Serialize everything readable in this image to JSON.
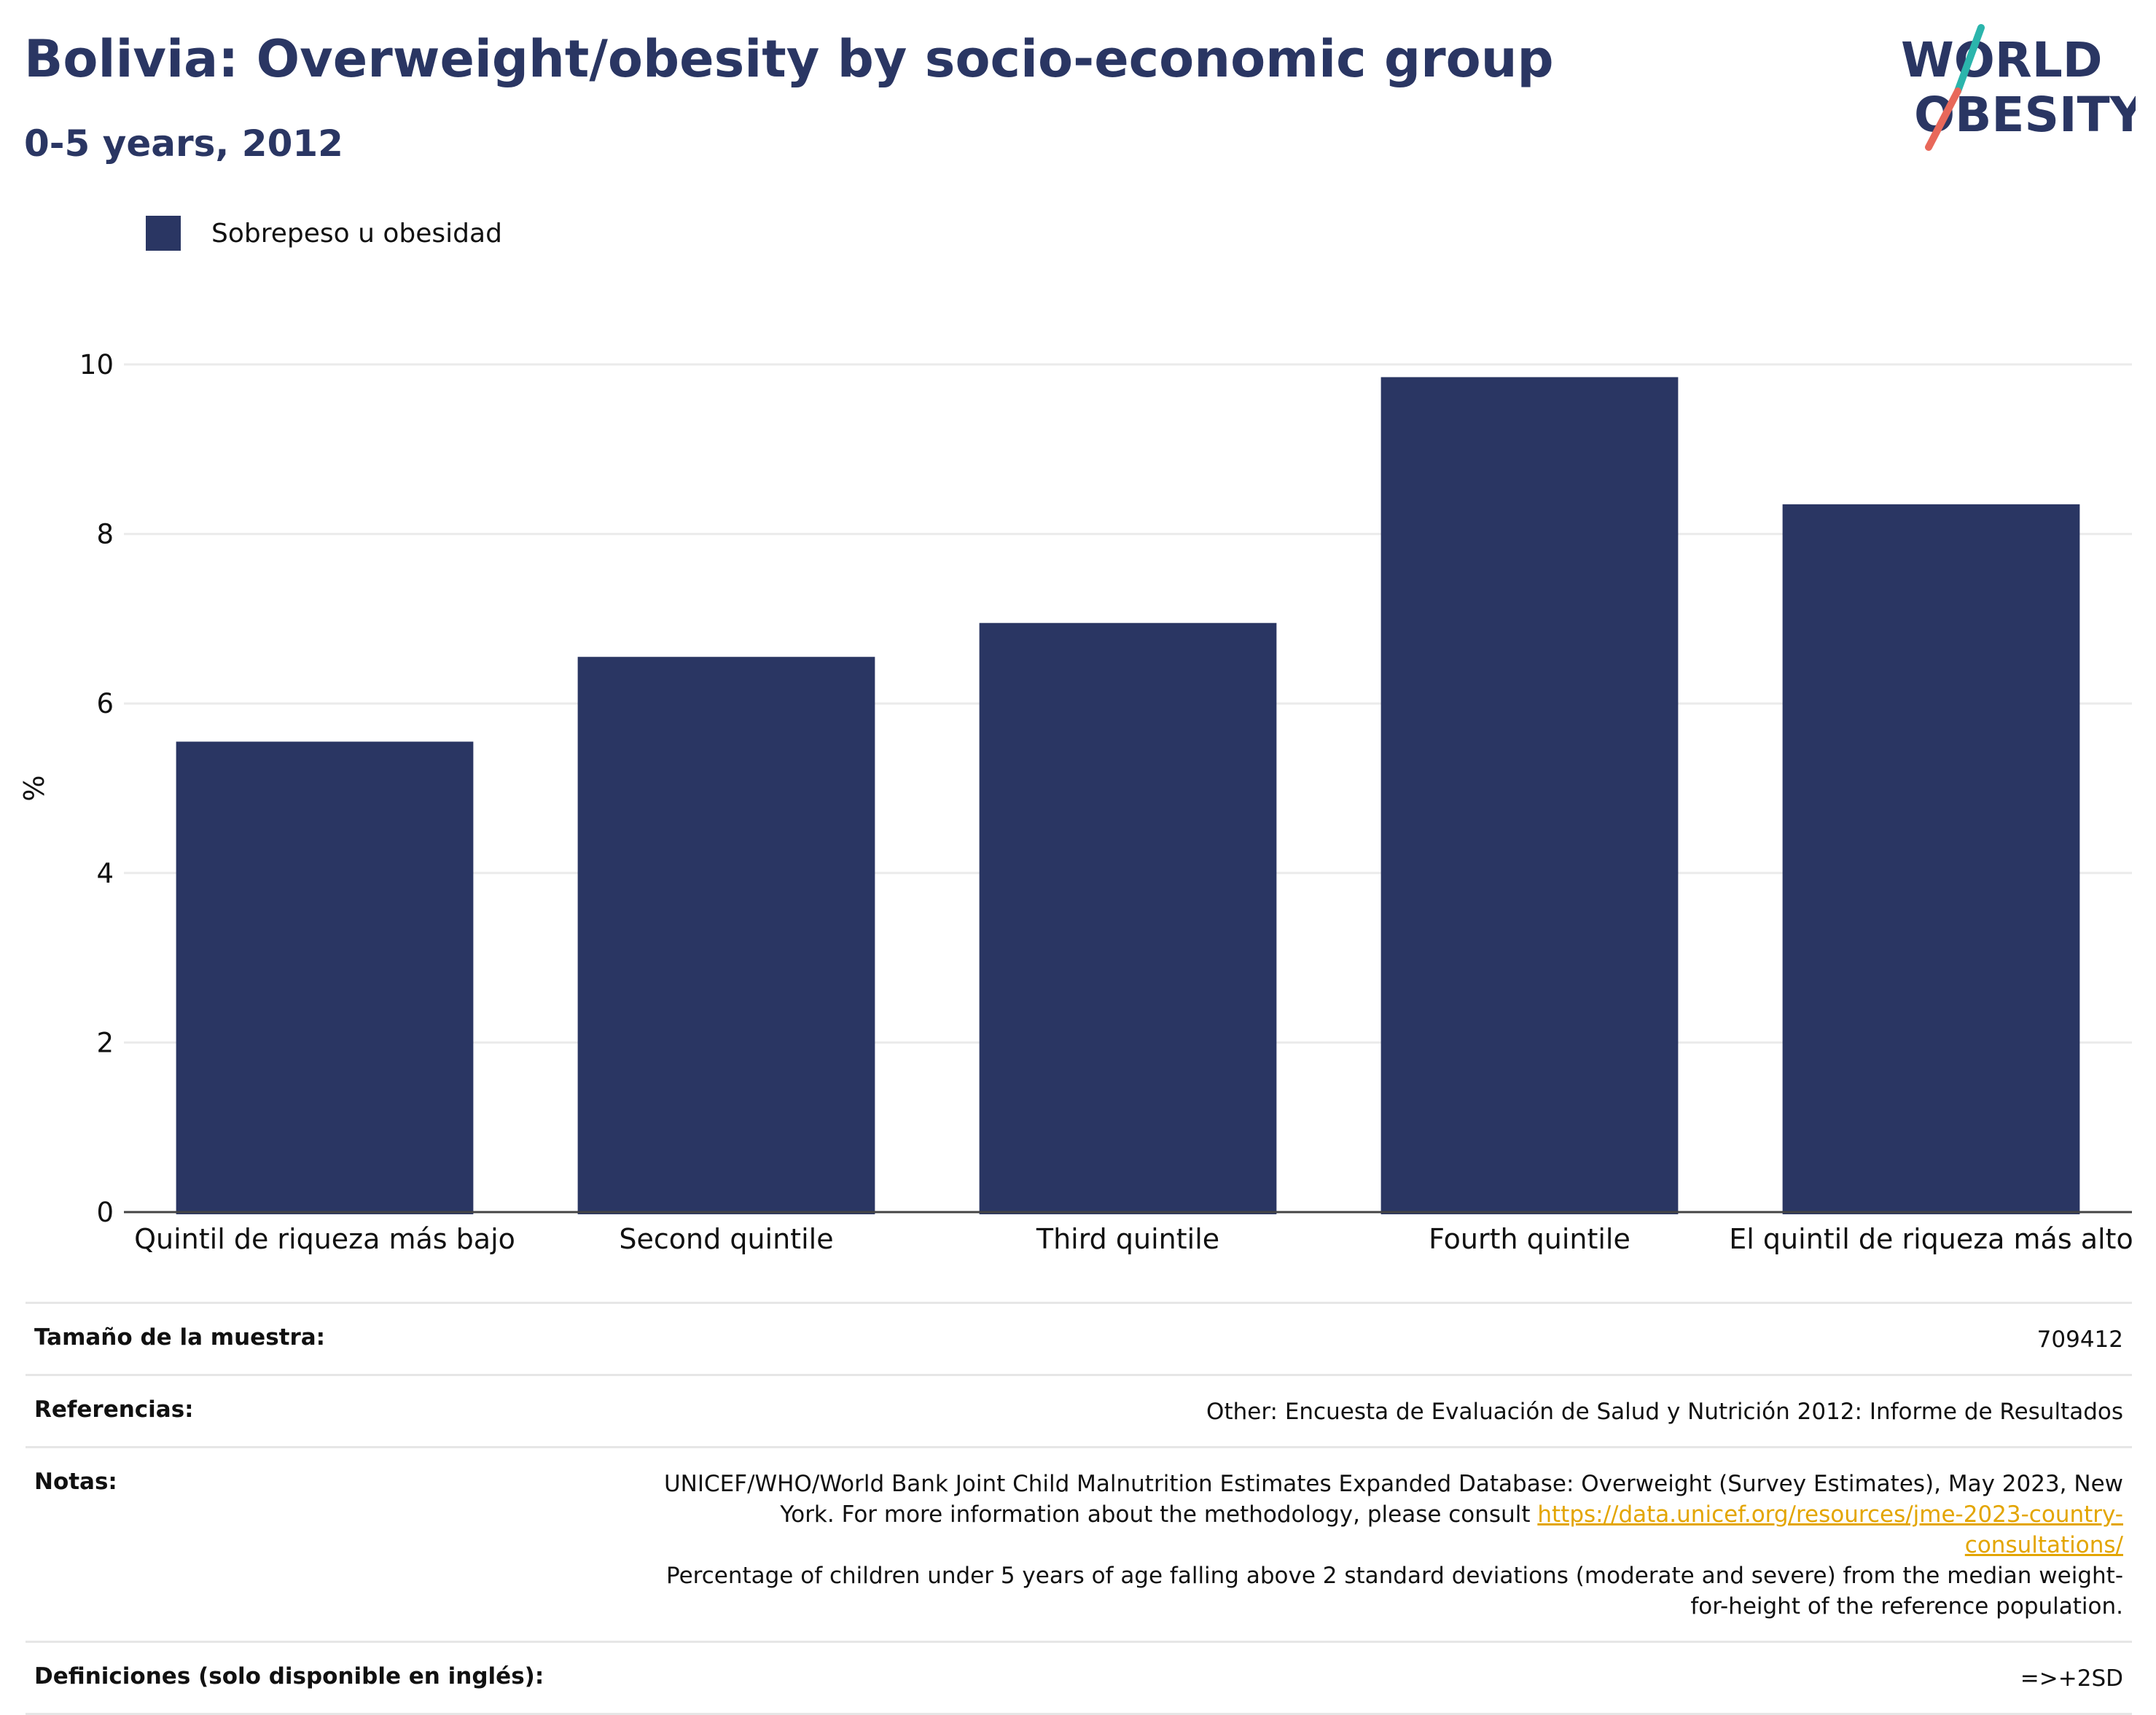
{
  "header": {
    "title": "Bolivia: Overweight/obesity by socio-economic group",
    "subtitle": "0-5 years, 2012"
  },
  "logo": {
    "line1": "WORLD",
    "line2": "OBESITY",
    "colors": {
      "text": "#2a3663",
      "slash_top": "#2bb5ac",
      "slash_bottom": "#e8685a"
    }
  },
  "legend": {
    "label": "Sobrepeso u obesidad",
    "color": "#2a3663"
  },
  "chart_data": {
    "type": "bar",
    "categories": [
      "Quintil de riqueza más bajo",
      "Second quintile",
      "Third quintile",
      "Fourth quintile",
      "El quintil de riqueza más alto"
    ],
    "series": [
      {
        "name": "Sobrepeso u obesidad",
        "values": [
          5.55,
          6.55,
          6.95,
          9.85,
          8.35
        ]
      }
    ],
    "ylabel": "%",
    "ylim": [
      0,
      10
    ],
    "yticks": [
      0,
      2,
      4,
      6,
      8,
      10
    ],
    "grid": true,
    "legend_position": "top-left",
    "bar_color": "#2a3663"
  },
  "info": {
    "sample_label": "Tamaño de la muestra:",
    "sample_value": "709412",
    "refs_label": "Referencias:",
    "refs_value": "Other: Encuesta de Evaluación de Salud y Nutrición 2012: Informe de Resultados",
    "notes_label": "Notas:",
    "notes_text_1": "UNICEF/WHO/World Bank Joint Child Malnutrition Estimates Expanded Database: Overweight (Survey Estimates), May 2023, New York. For more information about the methodology, please consult",
    "notes_link": "https://data.unicef.org/resources/jme-2023-country-consultations/",
    "notes_text_2": "Percentage of children under 5 years of age falling above 2 standard deviations (moderate and severe) from the median weight-for-height of the reference population.",
    "defs_label": "Definiciones (solo disponible en inglés):",
    "defs_value": "=>+2SD"
  }
}
